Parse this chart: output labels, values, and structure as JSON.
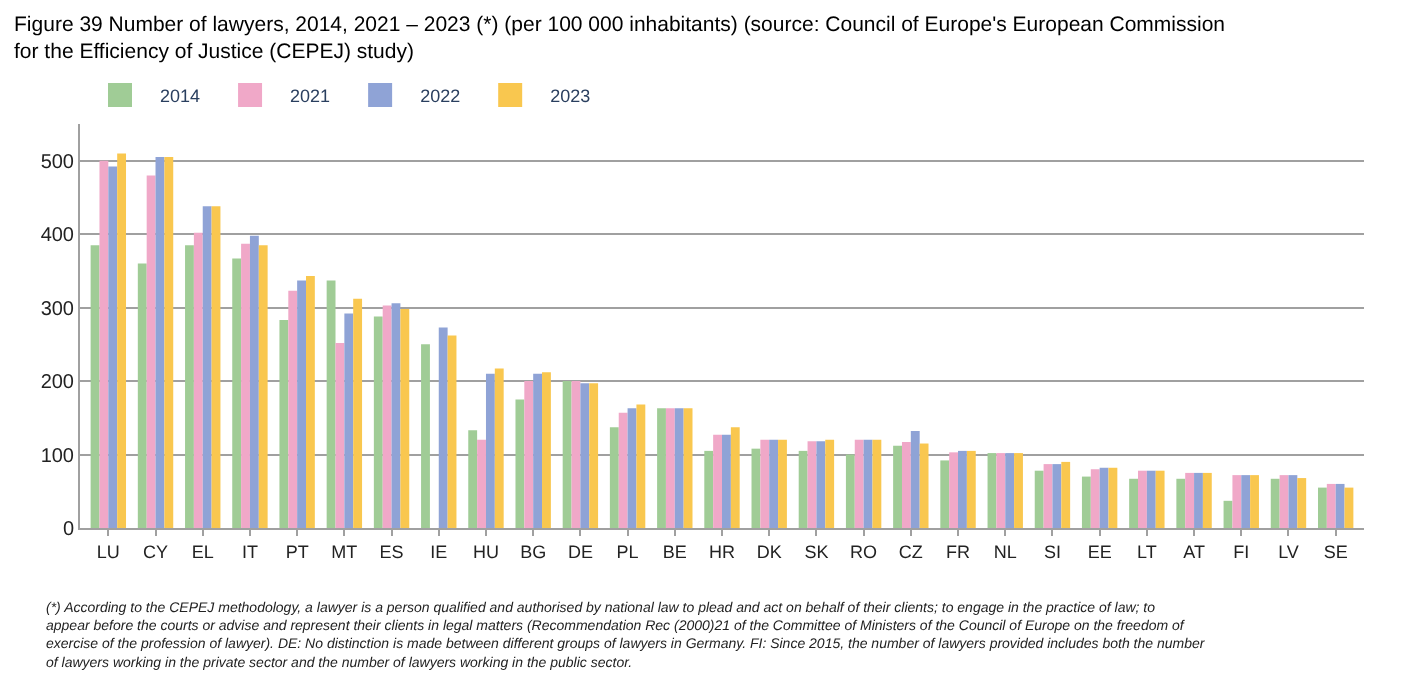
{
  "chart_data": {
    "type": "bar",
    "title": "Figure 39 Number of lawyers, 2014, 2021 – 2023 (*) (per 100 000 inhabitants) (source: Council of Europe's European Commission for the Efficiency of Justice (CEPEJ) study)",
    "categories": [
      "LU",
      "CY",
      "EL",
      "IT",
      "PT",
      "MT",
      "ES",
      "IE",
      "HU",
      "BG",
      "DE",
      "PL",
      "BE",
      "HR",
      "DK",
      "SK",
      "RO",
      "CZ",
      "FR",
      "NL",
      "SI",
      "EE",
      "LT",
      "AT",
      "FI",
      "LV",
      "SE"
    ],
    "series": [
      {
        "name": "2014",
        "color": "#a0cc96",
        "values": [
          385,
          360,
          385,
          367,
          283,
          337,
          288,
          250,
          133,
          175,
          200,
          137,
          163,
          105,
          108,
          105,
          100,
          112,
          92,
          102,
          78,
          70,
          67,
          67,
          37,
          67,
          55
        ]
      },
      {
        "name": "2021",
        "color": "#f0a8c8",
        "values": [
          500,
          480,
          402,
          387,
          323,
          252,
          303,
          null,
          120,
          200,
          200,
          157,
          163,
          127,
          120,
          118,
          120,
          117,
          103,
          102,
          87,
          80,
          78,
          75,
          72,
          72,
          60
        ]
      },
      {
        "name": "2022",
        "color": "#8fa3d6",
        "values": [
          492,
          505,
          438,
          398,
          337,
          292,
          306,
          273,
          210,
          210,
          197,
          163,
          163,
          127,
          120,
          118,
          120,
          132,
          105,
          102,
          87,
          82,
          78,
          75,
          72,
          72,
          60
        ]
      },
      {
        "name": "2023",
        "color": "#f9c74f",
        "values": [
          510,
          505,
          438,
          385,
          343,
          312,
          298,
          262,
          217,
          212,
          197,
          168,
          163,
          137,
          120,
          120,
          120,
          115,
          105,
          102,
          90,
          82,
          78,
          75,
          72,
          68,
          55
        ]
      }
    ],
    "ylim": [
      0,
      550
    ],
    "yticks": [
      0,
      100,
      200,
      300,
      400,
      500
    ],
    "grid": "y",
    "legend": "top left",
    "annotations": [
      "(*) According to the CEPEJ methodology, a lawyer is a person qualified and authorised by national law to plead and act on behalf of their clients; to engage in the practice of law; to appear before the courts or advise and represent their clients in legal matters (Recommendation Rec (2000)21 of the Committee of Ministers of the Council of Europe on the freedom of exercise of the profession of lawyer). DE: No distinction is made between different groups of lawyers in Germany. FI: Since 2015, the number of lawyers provided includes both the number of lawyers working in the private sector and the number of lawyers working in the public sector."
    ]
  }
}
